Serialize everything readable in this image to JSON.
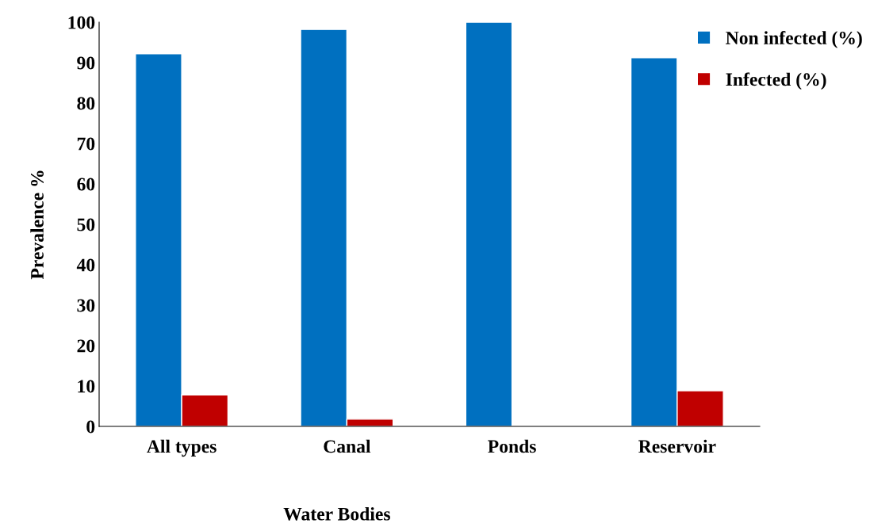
{
  "chart_data": {
    "type": "bar",
    "xlabel": "Water Bodies",
    "ylabel": "Prevalence %",
    "categories": [
      "All types",
      "Canal",
      "Ponds",
      "Reservoir"
    ],
    "series": [
      {
        "name": "Non infected (%)",
        "color": "#0070c0",
        "values": [
          92.2,
          98.2,
          100,
          91.2
        ]
      },
      {
        "name": "Infected (%)",
        "color": "#c00000",
        "values": [
          7.8,
          1.8,
          null,
          8.8
        ]
      }
    ],
    "ylim": [
      0,
      100
    ],
    "yticks": [
      0,
      10,
      20,
      30,
      40,
      50,
      60,
      70,
      80,
      90,
      100
    ],
    "grid": false,
    "legend": "top right"
  }
}
